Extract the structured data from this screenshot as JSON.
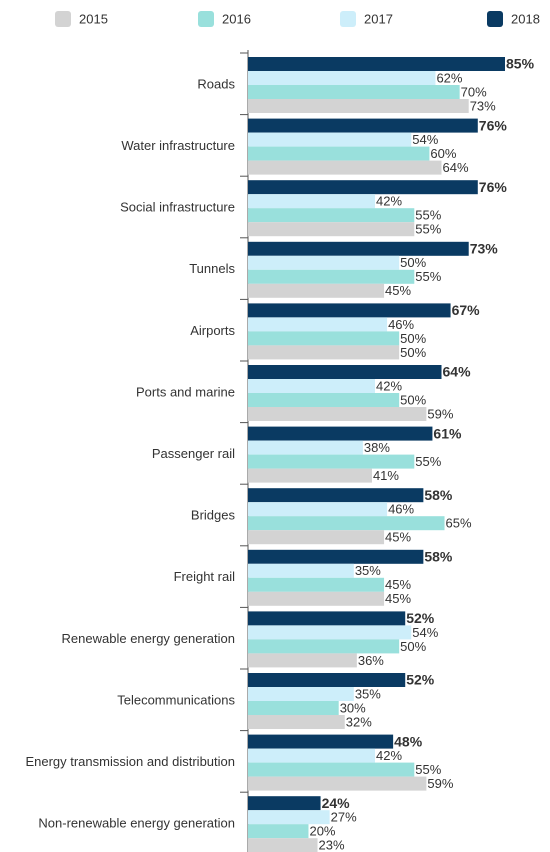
{
  "chart_data": {
    "type": "hbar",
    "categories": [
      "Roads",
      "Water infrastructure",
      "Social infrastructure",
      "Tunnels",
      "Airports",
      "Ports and marine",
      "Passenger rail",
      "Bridges",
      "Freight rail",
      "Renewable energy generation",
      "Telecommunications",
      "Energy transmission and distribution",
      "Non-renewable energy generation"
    ],
    "series": [
      {
        "name": "2015",
        "color": "#d3d3d3",
        "values": [
          73,
          64,
          55,
          45,
          50,
          59,
          41,
          45,
          45,
          36,
          32,
          59,
          23
        ],
        "value_labels": [
          "73%",
          "64%",
          "55%",
          "45%",
          "50%",
          "59%",
          "41%",
          "45%",
          "45%",
          "36%",
          "32%",
          "59%",
          "23%"
        ]
      },
      {
        "name": "2016",
        "color": "#99e0dc",
        "values": [
          70,
          60,
          55,
          55,
          50,
          50,
          55,
          65,
          45,
          50,
          30,
          55,
          20
        ],
        "value_labels": [
          "70%",
          "60%",
          "55%",
          "55%",
          "50%",
          "50%",
          "55%",
          "65%",
          "45%",
          "50%",
          "30%",
          "55%",
          "20%"
        ]
      },
      {
        "name": "2017",
        "color": "#cdeefa",
        "values": [
          62,
          54,
          42,
          50,
          46,
          42,
          38,
          46,
          35,
          54,
          35,
          42,
          27
        ],
        "value_labels": [
          "62%",
          "54%",
          "42%",
          "50%",
          "46%",
          "42%",
          "38%",
          "46%",
          "35%",
          "54%",
          "35%",
          "42%",
          "27%"
        ]
      },
      {
        "name": "2018",
        "color": "#0a3a62",
        "values": [
          85,
          76,
          76,
          73,
          67,
          64,
          61,
          58,
          58,
          52,
          52,
          48,
          24
        ],
        "value_labels": [
          "85%",
          "76%",
          "76%",
          "73%",
          "67%",
          "64%",
          "61%",
          "58%",
          "58%",
          "52%",
          "52%",
          "48%",
          "24%"
        ]
      }
    ],
    "legend": "top"
  }
}
